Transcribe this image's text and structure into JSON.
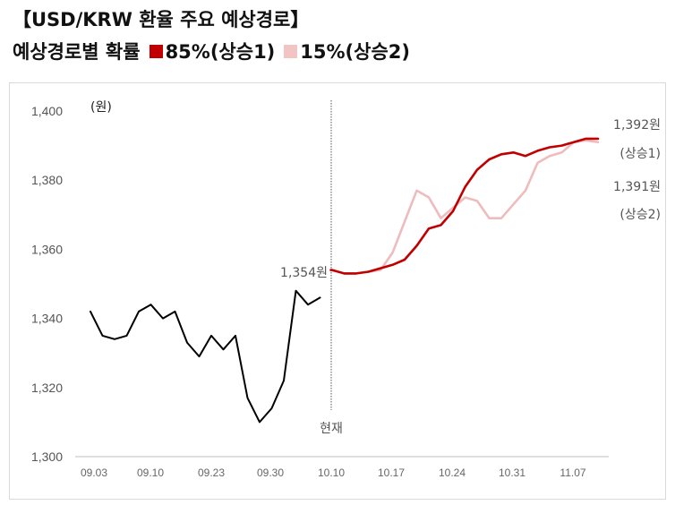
{
  "title": "【USD/KRW 환율 주요 예상경로】",
  "subtitle": "예상경로별 확률",
  "legend": [
    {
      "label": "85%(상승1)",
      "color": "#c00000"
    },
    {
      "label": "15%(상승2)",
      "color": "#f2c4c4"
    }
  ],
  "colors": {
    "history": "#000000",
    "path1": "#c00000",
    "path2": "#eebcbc"
  },
  "chart_data": {
    "type": "line",
    "ylabel": "(원)",
    "ylim": [
      1300,
      1400
    ],
    "yticks": [
      "1,300",
      "1,320",
      "1,340",
      "1,360",
      "1,380",
      "1,400"
    ],
    "xticks": [
      "09.03",
      "09.10",
      "09.23",
      "09.30",
      "10.10",
      "10.17",
      "10.24",
      "10.31",
      "11.07"
    ],
    "now_label": "현재",
    "now_value_label": "1,354원",
    "end_label_1": "1,392원",
    "end_label_1_name": "(상승1)",
    "end_label_2": "1,391원",
    "end_label_2_name": "(상승2)",
    "series": [
      {
        "name": "history",
        "x": [
          0,
          1,
          2,
          3,
          4,
          5,
          6,
          7,
          8,
          9,
          10,
          11,
          12,
          13,
          14,
          15,
          16,
          17,
          18,
          19
        ],
        "y": [
          1342,
          1335,
          1334,
          1335,
          1342,
          1344,
          1340,
          1342,
          1333,
          1329,
          1335,
          1331,
          1335,
          1317,
          1310,
          1314,
          1322,
          1348,
          1344,
          1346
        ]
      },
      {
        "name": "상승1",
        "x": [
          19.9,
          20,
          21,
          22,
          23,
          24,
          25,
          26,
          27,
          28,
          29,
          30,
          31,
          32,
          33,
          34,
          35,
          36,
          37,
          38,
          39,
          40,
          41,
          42
        ],
        "y": [
          1354,
          1354,
          1353,
          1353,
          1353.5,
          1354.5,
          1355.5,
          1357,
          1361,
          1366,
          1367,
          1371,
          1378,
          1383,
          1386,
          1387.5,
          1388,
          1387,
          1388.5,
          1389.5,
          1390,
          1391,
          1392,
          1392
        ]
      },
      {
        "name": "상승2",
        "x": [
          19.9,
          20,
          21,
          22,
          23,
          24,
          25,
          26,
          27,
          28,
          29,
          30,
          31,
          32,
          33,
          34,
          35,
          36,
          37,
          38,
          39,
          40,
          41,
          42
        ],
        "y": [
          1354,
          1354,
          1353,
          1353,
          1353.5,
          1354,
          1359,
          1368,
          1377,
          1375,
          1369,
          1372,
          1375,
          1374,
          1369,
          1369,
          1373,
          1377,
          1385,
          1387,
          1388,
          1391,
          1391.5,
          1391
        ]
      }
    ]
  }
}
